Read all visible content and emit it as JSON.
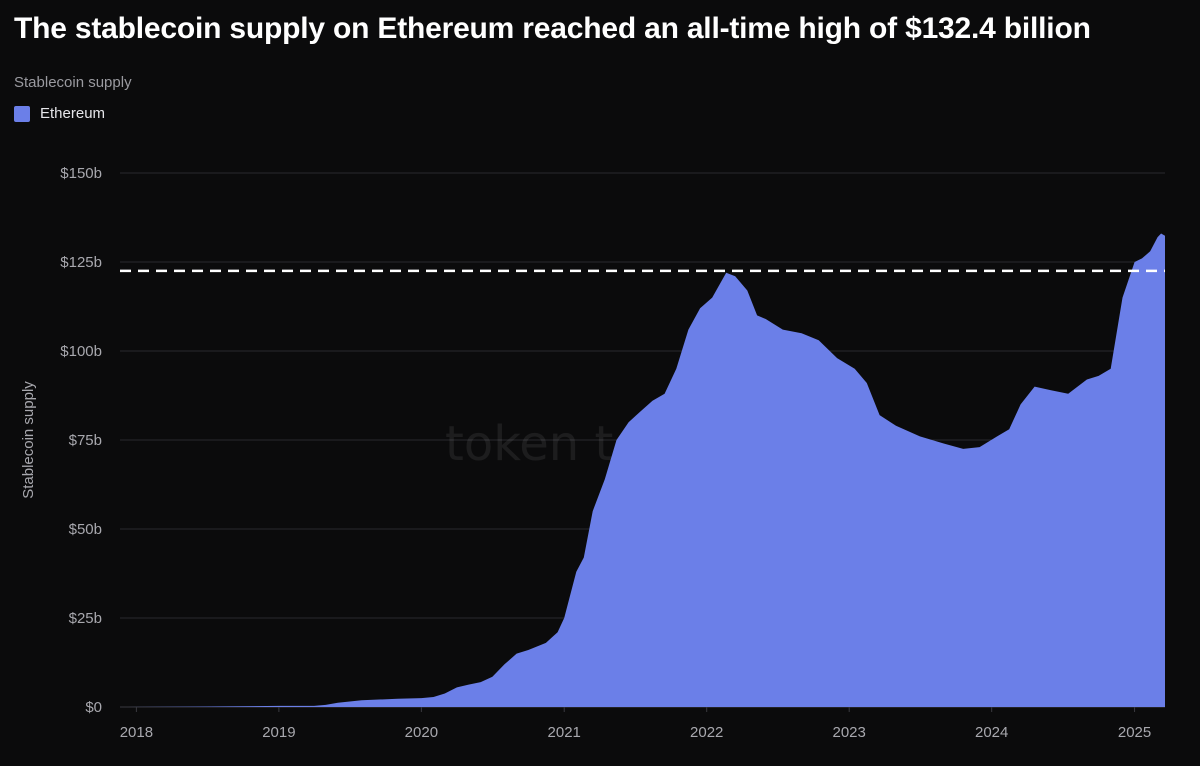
{
  "header": {
    "title": "The stablecoin supply on Ethereum reached an all-time high of $132.4 billion",
    "subtitle": "Stablecoin supply"
  },
  "legend": {
    "items": [
      {
        "label": "Ethereum",
        "color": "#6b7fe8"
      }
    ]
  },
  "watermark": "token terminal_",
  "colors": {
    "background": "#0b0b0c",
    "series": "#6b7fe8",
    "grid": "#2a2a2e",
    "reference_line": "#ffffff"
  },
  "chart_data": {
    "type": "area",
    "title": "The stablecoin supply on Ethereum reached an all-time high of $132.4 billion",
    "subtitle": "Stablecoin supply",
    "xlabel": "",
    "ylabel": "Stablecoin supply",
    "x_ticks": [
      "2018",
      "2019",
      "2020",
      "2021",
      "2022",
      "2023",
      "2024",
      "2025"
    ],
    "y_ticks": [
      "$0",
      "$25b",
      "$50b",
      "$75b",
      "$100b",
      "$125b",
      "$150b"
    ],
    "y_tick_values": [
      0,
      25,
      50,
      75,
      100,
      125,
      150
    ],
    "xlim": [
      "2017-11-20",
      "2025-03-20"
    ],
    "ylim": [
      0,
      150
    ],
    "grid": true,
    "legend_position": "top-left",
    "reference_line": {
      "y": 122.5,
      "style": "dashed"
    },
    "series": [
      {
        "name": "Ethereum",
        "points": [
          [
            "2017-11-20",
            0.0
          ],
          [
            "2018-06-01",
            0.1
          ],
          [
            "2019-01-01",
            0.3
          ],
          [
            "2019-04-01",
            0.3
          ],
          [
            "2019-05-01",
            0.6
          ],
          [
            "2019-06-01",
            1.2
          ],
          [
            "2019-08-01",
            1.9
          ],
          [
            "2019-11-01",
            2.3
          ],
          [
            "2020-01-01",
            2.5
          ],
          [
            "2020-02-01",
            2.8
          ],
          [
            "2020-03-01",
            3.8
          ],
          [
            "2020-04-01",
            5.5
          ],
          [
            "2020-05-01",
            6.3
          ],
          [
            "2020-06-01",
            7.0
          ],
          [
            "2020-07-01",
            8.5
          ],
          [
            "2020-08-01",
            12.0
          ],
          [
            "2020-09-01",
            15.0
          ],
          [
            "2020-10-01",
            16.0
          ],
          [
            "2020-11-15",
            18.0
          ],
          [
            "2020-12-15",
            21.0
          ],
          [
            "2021-01-01",
            25.0
          ],
          [
            "2021-02-01",
            38.0
          ],
          [
            "2021-02-20",
            42.0
          ],
          [
            "2021-03-15",
            55.0
          ],
          [
            "2021-04-15",
            64.0
          ],
          [
            "2021-05-15",
            75.0
          ],
          [
            "2021-06-15",
            80.0
          ],
          [
            "2021-07-15",
            83.0
          ],
          [
            "2021-08-15",
            86.0
          ],
          [
            "2021-09-15",
            88.0
          ],
          [
            "2021-10-15",
            95.0
          ],
          [
            "2021-11-15",
            106.0
          ],
          [
            "2021-12-15",
            112.0
          ],
          [
            "2022-01-15",
            115.0
          ],
          [
            "2022-02-20",
            122.0
          ],
          [
            "2022-03-15",
            121.0
          ],
          [
            "2022-04-15",
            117.0
          ],
          [
            "2022-05-10",
            110.0
          ],
          [
            "2022-06-01",
            109.0
          ],
          [
            "2022-07-15",
            106.0
          ],
          [
            "2022-09-01",
            105.0
          ],
          [
            "2022-10-15",
            103.0
          ],
          [
            "2022-12-01",
            98.0
          ],
          [
            "2023-01-15",
            95.0
          ],
          [
            "2023-02-15",
            91.0
          ],
          [
            "2023-03-20",
            82.0
          ],
          [
            "2023-05-01",
            79.0
          ],
          [
            "2023-07-01",
            76.0
          ],
          [
            "2023-09-01",
            74.0
          ],
          [
            "2023-10-20",
            72.5
          ],
          [
            "2023-12-01",
            73.0
          ],
          [
            "2024-01-15",
            76.0
          ],
          [
            "2024-02-15",
            78.0
          ],
          [
            "2024-03-15",
            85.0
          ],
          [
            "2024-04-20",
            90.0
          ],
          [
            "2024-06-01",
            89.0
          ],
          [
            "2024-07-15",
            88.0
          ],
          [
            "2024-09-01",
            92.0
          ],
          [
            "2024-10-01",
            93.0
          ],
          [
            "2024-11-01",
            95.0
          ],
          [
            "2024-12-01",
            115.0
          ],
          [
            "2025-01-01",
            125.0
          ],
          [
            "2025-01-20",
            126.0
          ],
          [
            "2025-02-10",
            128.0
          ],
          [
            "2025-03-01",
            132.0
          ],
          [
            "2025-03-10",
            133.0
          ],
          [
            "2025-03-20",
            132.4
          ]
        ]
      }
    ]
  }
}
